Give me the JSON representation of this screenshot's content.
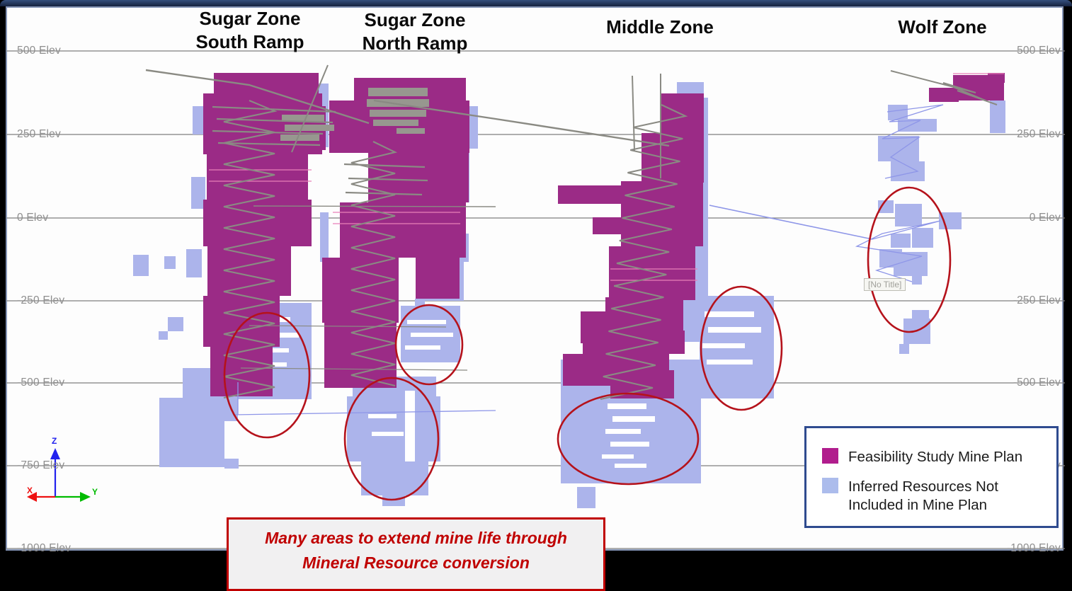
{
  "zones": {
    "sugar_south": {
      "line1": "Sugar Zone",
      "line2": "South Ramp"
    },
    "sugar_north": {
      "line1": "Sugar Zone",
      "line2": "North Ramp"
    },
    "middle": {
      "label": "Middle Zone"
    },
    "wolf": {
      "label": "Wolf Zone"
    }
  },
  "axis": {
    "elevations": [
      "500 Elev",
      "250 Elev",
      "0 Elev",
      "-250 Elev",
      "-500 Elev",
      "-750 Elev",
      "-1000 Elev"
    ]
  },
  "triad": {
    "x_label": "X",
    "y_label": "Y",
    "z_label": "Z"
  },
  "viewport": {
    "no_title_chip": "[No Title]"
  },
  "legend": {
    "items": [
      {
        "name": "feasibility-mine-plan",
        "label": "Feasibility Study Mine Plan",
        "color": "#B11D8D"
      },
      {
        "name": "inferred-resources",
        "label_line1": "Inferred Resources Not",
        "label_line2": "Included in Mine Plan",
        "color": "#ACBCEC"
      }
    ]
  },
  "callout": {
    "line1": "Many areas to extend mine life through",
    "line2": "Mineral Resource conversion",
    "text_color": "#C00000"
  },
  "colors": {
    "mine_plan_block": "#9B2B86",
    "inferred_block": "#ACB4EB",
    "ramp_gray": "#8A8A83",
    "gridline": "#7F7F7F",
    "highlight_ellipse": "#B5121B",
    "legend_border": "#2F4B8F",
    "access_line_blue": "#8E96E8"
  }
}
